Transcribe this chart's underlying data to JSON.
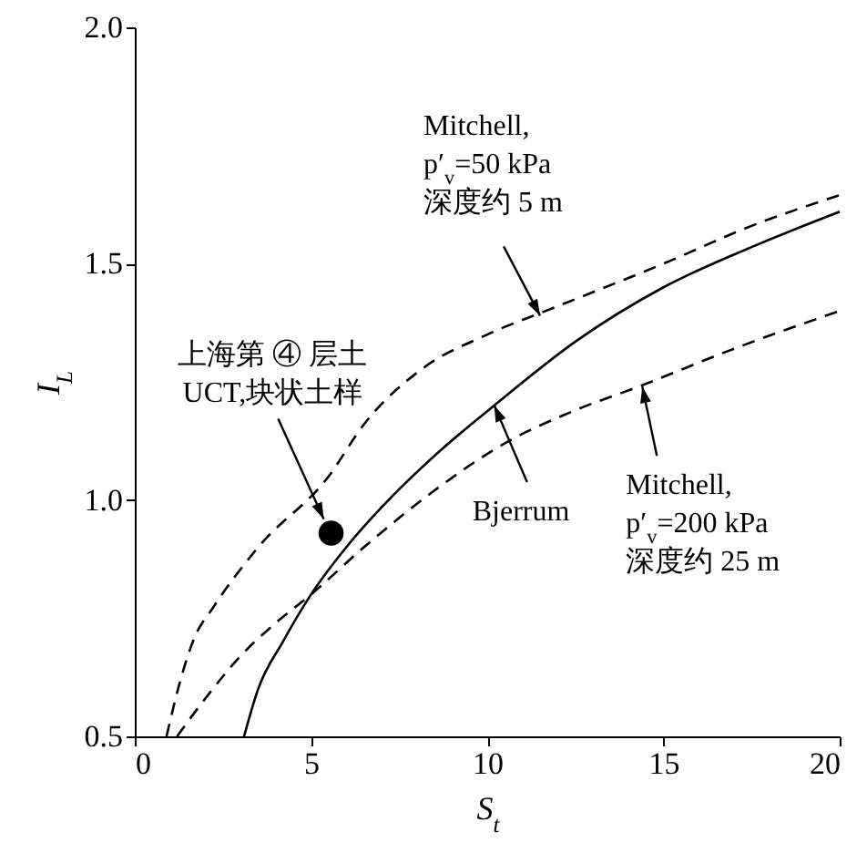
{
  "chart_data": {
    "type": "line",
    "xlabel": "S$_{t}$",
    "ylabel": "I$_{L}$",
    "xlim": [
      0,
      20
    ],
    "ylim": [
      0.5,
      2.0
    ],
    "xticks": [
      0,
      5,
      10,
      15,
      20
    ],
    "yticks": [
      0.5,
      {
        "value": 1,
        "label": "1.0"
      },
      1.5,
      {
        "value": 2,
        "label": "2.0"
      }
    ],
    "series": [
      {
        "line_style": "dashed",
        "color": "#000000",
        "x": [
          0.9,
          1.3,
          1.7,
          2.2,
          3.5,
          5.5,
          6.5,
          8.2,
          10,
          12,
          15,
          17.5,
          20
        ],
        "values": [
          0.5,
          0.62,
          0.71,
          0.77,
          0.9,
          1.05,
          1.16,
          1.28,
          1.35,
          1.41,
          1.5,
          1.58,
          1.645
        ]
      },
      {
        "line_style": "solid",
        "color": "#000000",
        "x": [
          3.1,
          3.5,
          4.2,
          5,
          6,
          7.2,
          8.6,
          10.2,
          12.5,
          15,
          17.5,
          20
        ],
        "values": [
          0.5,
          0.6,
          0.7,
          0.8,
          0.9,
          1.0,
          1.1,
          1.2,
          1.335,
          1.45,
          1.535,
          1.61
        ]
      },
      {
        "line_style": "dashed",
        "color": "#000000",
        "x": [
          1.2,
          2,
          3,
          4,
          5,
          6.5,
          8.5,
          10.5,
          12.5,
          14.3,
          17,
          20
        ],
        "values": [
          0.5,
          0.58,
          0.67,
          0.74,
          0.8,
          0.9,
          1.02,
          1.12,
          1.19,
          1.24,
          1.32,
          1.4
        ]
      },
      {
        "type": "scatter",
        "marker": "circle",
        "color": "#000000",
        "x": [
          5.57
        ],
        "values": [
          0.93
        ]
      }
    ],
    "annotations": [
      {
        "text": "Mitchell,\np′$_{v}$=50 kPa\n深度约 5 m",
        "x": 11.5,
        "y": 1.39
      },
      {
        "text": "Bjerrum",
        "x": 10.2,
        "y": 1.2
      },
      {
        "text": "Mitchell,\np′$_{v}$=200 kPa\n深度约 25 m",
        "x": 14.4,
        "y": 1.24
      },
      {
        "text": "上海第 ④ 层土\nUCT,块状土样",
        "x": 5.36,
        "y": 0.96
      }
    ]
  }
}
